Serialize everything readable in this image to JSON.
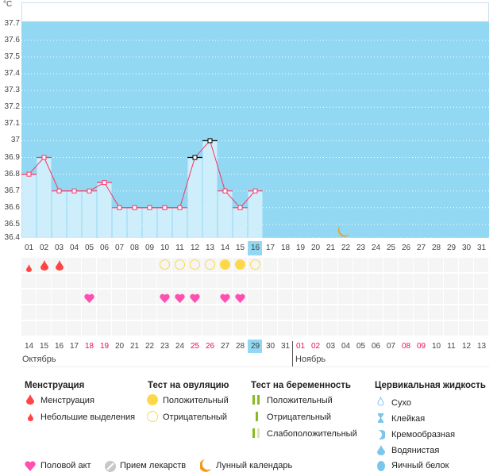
{
  "chart_data": {
    "type": "bar",
    "unit": "°C",
    "ylim": [
      36.4,
      37.8
    ],
    "yticks": [
      "37.7",
      "37.6",
      "37.5",
      "37.4",
      "37.3",
      "37.2",
      "37.1",
      "37",
      "36.9",
      "36.8",
      "36.7",
      "36.6",
      "36.5",
      "36.4"
    ],
    "days": [
      "01",
      "02",
      "03",
      "04",
      "05",
      "06",
      "07",
      "08",
      "09",
      "10",
      "11",
      "12",
      "13",
      "14",
      "15",
      "16",
      "17",
      "18",
      "19",
      "20",
      "21",
      "22",
      "23",
      "24",
      "25",
      "26",
      "27",
      "28",
      "29",
      "30",
      "31"
    ],
    "today_index": 15,
    "temperatures": [
      36.8,
      36.9,
      36.7,
      36.7,
      36.7,
      36.75,
      36.6,
      36.6,
      36.6,
      36.6,
      36.6,
      36.9,
      37.0,
      36.7,
      36.6,
      36.7
    ],
    "black_markers": [
      12,
      13
    ],
    "grid": "dotted",
    "colors": {
      "background": "#92d8f2",
      "bar": "#cdeefa",
      "line": "#ff3366"
    },
    "moon_day": "22",
    "menstruation": {
      "01": "spotting",
      "02": "menstruation",
      "03": "menstruation"
    },
    "ovulation_test": {
      "10": "negative",
      "11": "negative",
      "12": "negative",
      "13": "negative",
      "14": "positive",
      "15": "positive",
      "16": "negative"
    },
    "intercourse": [
      "05",
      "10",
      "11",
      "12",
      "14",
      "15"
    ],
    "calendar_days": [
      "14",
      "15",
      "16",
      "17",
      "18",
      "19",
      "20",
      "21",
      "22",
      "23",
      "24",
      "25",
      "26",
      "27",
      "28",
      "29",
      "30",
      "31",
      "01",
      "02",
      "03",
      "04",
      "05",
      "06",
      "07",
      "08",
      "09",
      "10",
      "11",
      "12",
      "13"
    ],
    "weekend_days": [
      4,
      5,
      11,
      12,
      18,
      19,
      25,
      26
    ],
    "calendar_today_index": 15,
    "months": [
      "Октябрь",
      "Ноябрь"
    ]
  },
  "legend": {
    "menstruation": {
      "title": "Менструация",
      "items": [
        "Менструация",
        "Небольшие выделения"
      ]
    },
    "ovulation": {
      "title": "Тест на овуляцию",
      "items": [
        "Положительный",
        "Отрицательный"
      ]
    },
    "pregnancy": {
      "title": "Тест на беременность",
      "items": [
        "Положительный",
        "Отрицательный",
        "Слабоположительный"
      ]
    },
    "cervical": {
      "title": "Цервикальная жидкость",
      "items": [
        "Сухо",
        "Клейкая",
        "Кремообразная",
        "Водянистая",
        "Яичный белок"
      ]
    },
    "other": [
      "Половой акт",
      "Прием лекарств",
      "Лунный календарь"
    ]
  }
}
